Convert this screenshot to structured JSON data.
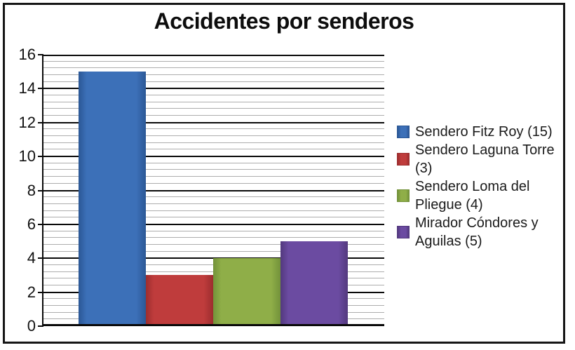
{
  "chart": {
    "title": "Accidentes por senderos"
  },
  "chart_data": {
    "type": "bar",
    "title": "Accidentes por senderos",
    "xlabel": "",
    "ylabel": "",
    "ylim": [
      0,
      16
    ],
    "y_major_interval": 2,
    "y_minor_interval": 0.4,
    "ytick_labels": [
      "16",
      "14",
      "12",
      "10",
      "8",
      "6",
      "4",
      "2",
      "0"
    ],
    "grid": "major-black-minor-gray",
    "legend_position": "right",
    "series": [
      {
        "name": "Sendero Fitz Roy (15)",
        "value": 15,
        "color": "#3c70b8",
        "color_dark": "#2b5795"
      },
      {
        "name": "Sendero Laguna Torre (3)",
        "value": 3,
        "color": "#bf3c3c",
        "color_dark": "#9c2d2e"
      },
      {
        "name": "Sendero Loma del Pliegue (4)",
        "value": 4,
        "color": "#8fae48",
        "color_dark": "#73923a"
      },
      {
        "name": "Mirador Cóndores y Aguilas (5)",
        "value": 5,
        "color": "#6b4ba1",
        "color_dark": "#53397e"
      }
    ]
  }
}
